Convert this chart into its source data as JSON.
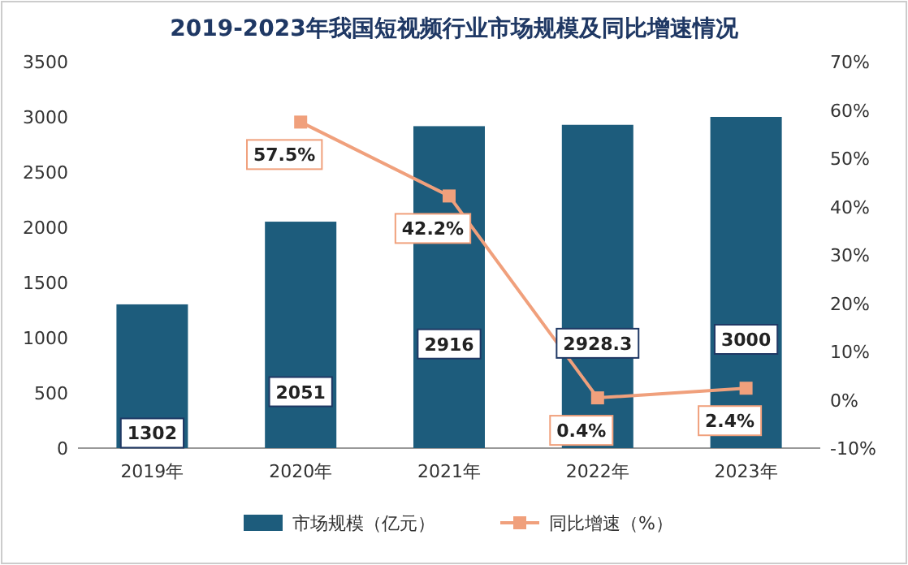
{
  "chart_data": {
    "type": "bar",
    "title": "2019-2023年我国短视频行业市场规模及同比增速情况",
    "categories": [
      "2019年",
      "2020年",
      "2021年",
      "2022年",
      "2023年"
    ],
    "series": [
      {
        "name": "市场规模（亿元）",
        "color": "#1d5c7c",
        "values": [
          1302,
          2051,
          2916,
          2928.3,
          3000
        ],
        "value_labels": [
          "1302",
          "2051",
          "2916",
          "2928.3",
          "3000"
        ]
      },
      {
        "name": "同比增速（%）",
        "type": "line",
        "axis": "y2",
        "color": "#f0a07c",
        "marker": "square",
        "values": [
          null,
          57.5,
          42.2,
          0.4,
          2.4
        ],
        "value_labels": [
          null,
          "57.5%",
          "42.2%",
          "0.4%",
          "2.4%"
        ]
      }
    ],
    "ylim": [
      0,
      3500
    ],
    "yticks": [
      0,
      500,
      1000,
      1500,
      2000,
      2500,
      3000,
      3500
    ],
    "y2lim": [
      -10,
      70
    ],
    "y2ticks": [
      {
        "value": -10,
        "label": "-10%"
      },
      {
        "value": 0,
        "label": "0%"
      },
      {
        "value": 10,
        "label": "10%"
      },
      {
        "value": 20,
        "label": "20%"
      },
      {
        "value": 30,
        "label": "30%"
      },
      {
        "value": 40,
        "label": "40%"
      },
      {
        "value": 50,
        "label": "50%"
      },
      {
        "value": 60,
        "label": "60%"
      },
      {
        "value": 70,
        "label": "70%"
      }
    ],
    "grid": false,
    "legend": "bottom"
  }
}
